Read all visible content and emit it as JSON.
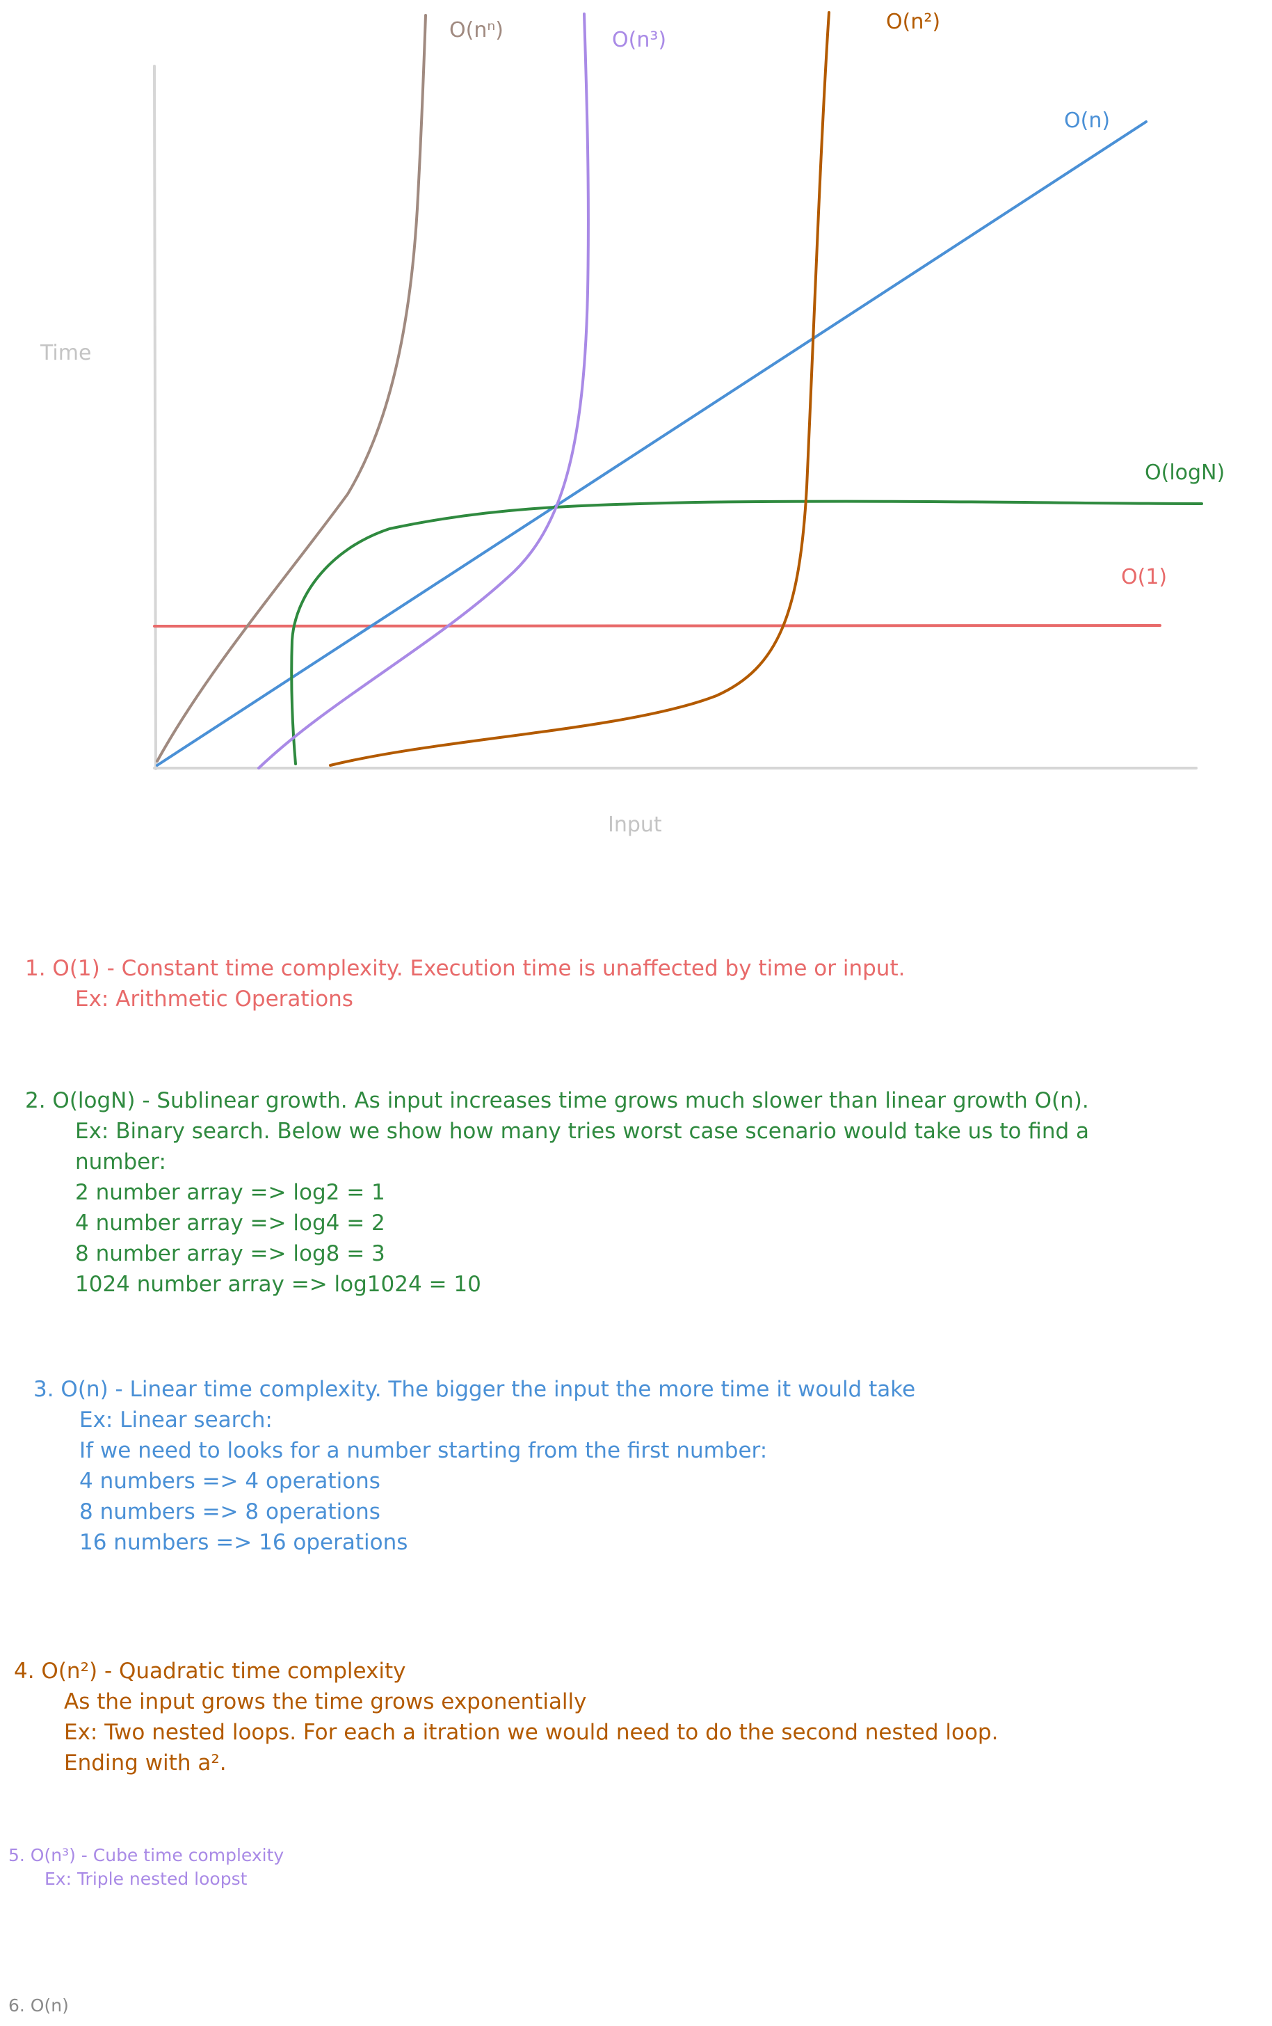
{
  "axes": {
    "y_label": "Time",
    "x_label": "Input"
  },
  "curves": [
    {
      "id": "n-n",
      "label": "O(nⁿ)",
      "color": "#a08a80"
    },
    {
      "id": "n-cubed",
      "label": "O(n³)",
      "color": "#a98ae6"
    },
    {
      "id": "n-squared",
      "label": "O(n²)",
      "color": "#b35a00"
    },
    {
      "id": "n",
      "label": "O(n)",
      "color": "#4a90d6"
    },
    {
      "id": "log-n",
      "label": "O(logN)",
      "color": "#2f8a3f"
    },
    {
      "id": "constant",
      "label": "O(1)",
      "color": "#e86a6a"
    }
  ],
  "notes": {
    "n1": {
      "lines": [
        "1. O(1) - Constant time complexity. Execution time is unaffected by time or input.",
        "Ex: Arithmetic Operations"
      ]
    },
    "n2": {
      "lines": [
        "2. O(logN) - Sublinear growth. As input increases time grows much slower than linear growth O(n).",
        "Ex: Binary search. Below we show how many tries worst case scenario would take us to find a",
        "number:",
        "2 number array => log2 = 1",
        "4 number array => log4 = 2",
        "8 number array => log8 = 3",
        "1024 number array => log1024 = 10"
      ]
    },
    "n3": {
      "lines": [
        "3. O(n) - Linear time complexity. The bigger the input the more time it would take",
        "Ex: Linear search:",
        "If we need to looks for a number starting from the first number:",
        "4 numbers => 4 operations",
        "8 numbers => 8 operations",
        "16 numbers => 16 operations"
      ]
    },
    "n4": {
      "lines": [
        "4. O(n²) - Quadratic time complexity",
        "As the input grows the time grows exponentially",
        "Ex: Two nested loops. For each a itration we would need to do the second nested loop.",
        "Ending with a²."
      ]
    },
    "n5": {
      "lines": [
        "5. O(n³) - Cube time complexity",
        "Ex: Triple nested loopst"
      ]
    },
    "n6": {
      "lines": [
        "6. O(n)"
      ]
    }
  }
}
